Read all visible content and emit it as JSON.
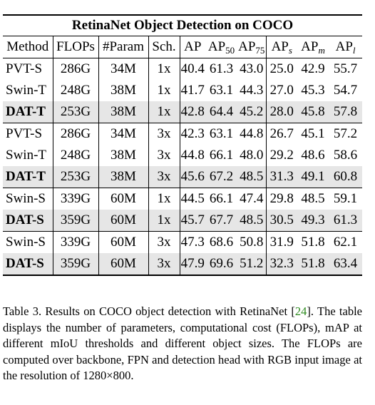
{
  "table": {
    "title": "RetinaNet Object Detection on COCO",
    "headers": {
      "method": "Method",
      "flops": "FLOPs",
      "params": "#Param",
      "sch": "Sch.",
      "ap": "AP",
      "ap_base": "AP",
      "ap50_sub": "50",
      "ap75_sub": "75",
      "aps_sub": "s",
      "apm_sub": "m",
      "apl_sub": "l"
    },
    "rows": [
      {
        "method": "PVT-S",
        "flops": "286G",
        "params": "34M",
        "sch": "1x",
        "ap": "40.4",
        "ap50": "61.3",
        "ap75": "43.0",
        "aps": "25.0",
        "apm": "42.9",
        "apl": "55.7"
      },
      {
        "method": "Swin-T",
        "flops": "248G",
        "params": "38M",
        "sch": "1x",
        "ap": "41.7",
        "ap50": "63.1",
        "ap75": "44.3",
        "aps": "27.0",
        "apm": "45.3",
        "apl": "54.7"
      },
      {
        "method": "DAT-T",
        "flops": "253G",
        "params": "38M",
        "sch": "1x",
        "ap": "42.8",
        "ap50": "64.4",
        "ap75": "45.2",
        "aps": "28.0",
        "apm": "45.8",
        "apl": "57.8"
      },
      {
        "method": "PVT-S",
        "flops": "286G",
        "params": "34M",
        "sch": "3x",
        "ap": "42.3",
        "ap50": "63.1",
        "ap75": "44.8",
        "aps": "26.7",
        "apm": "45.1",
        "apl": "57.2"
      },
      {
        "method": "Swin-T",
        "flops": "248G",
        "params": "38M",
        "sch": "3x",
        "ap": "44.8",
        "ap50": "66.1",
        "ap75": "48.0",
        "aps": "29.2",
        "apm": "48.6",
        "apl": "58.6"
      },
      {
        "method": "DAT-T",
        "flops": "253G",
        "params": "38M",
        "sch": "3x",
        "ap": "45.6",
        "ap50": "67.2",
        "ap75": "48.5",
        "aps": "31.3",
        "apm": "49.1",
        "apl": "60.8"
      },
      {
        "method": "Swin-S",
        "flops": "339G",
        "params": "60M",
        "sch": "1x",
        "ap": "44.5",
        "ap50": "66.1",
        "ap75": "47.4",
        "aps": "29.8",
        "apm": "48.5",
        "apl": "59.1"
      },
      {
        "method": "DAT-S",
        "flops": "359G",
        "params": "60M",
        "sch": "1x",
        "ap": "45.7",
        "ap50": "67.7",
        "ap75": "48.5",
        "aps": "30.5",
        "apm": "49.3",
        "apl": "61.3"
      },
      {
        "method": "Swin-S",
        "flops": "339G",
        "params": "60M",
        "sch": "3x",
        "ap": "47.3",
        "ap50": "68.6",
        "ap75": "50.8",
        "aps": "31.9",
        "apm": "51.8",
        "apl": "62.1"
      },
      {
        "method": "DAT-S",
        "flops": "359G",
        "params": "60M",
        "sch": "3x",
        "ap": "47.9",
        "ap50": "69.6",
        "ap75": "51.2",
        "aps": "32.3",
        "apm": "51.8",
        "apl": "63.4"
      }
    ]
  },
  "caption": {
    "before_cite": "Table 3. Results on COCO object detection with RetinaNet [",
    "cite": "24",
    "after_cite": "]. The table displays the number of parameters, computational cost (FLOPs), mAP at different mIoU thresholds and different object sizes. The FLOPs are computed over backbone, FPN and detection head with RGB input image at the resolution of 1280×800."
  }
}
